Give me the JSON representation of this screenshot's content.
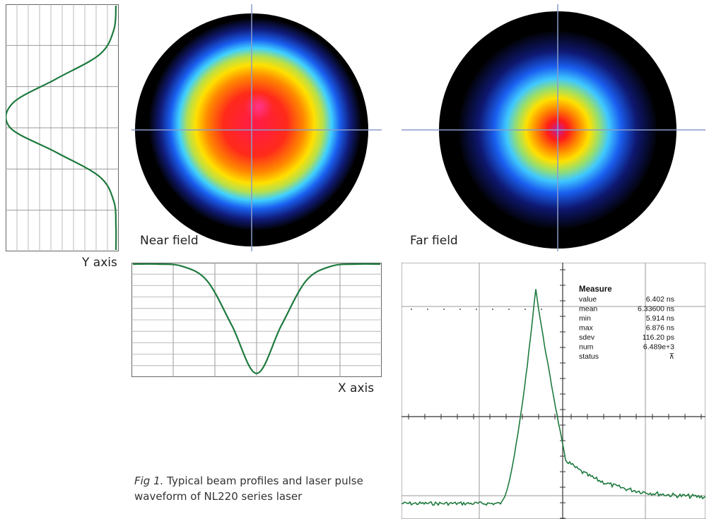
{
  "caption": {
    "fig": "Fig 1.",
    "text": " Typical beam profiles and laser pulse waveform of NL220 series laser"
  },
  "near_field": {
    "label": "Near field"
  },
  "far_field": {
    "label": "Far field"
  },
  "y_profile": {
    "label": "Y axis"
  },
  "x_profile": {
    "label": "X axis"
  },
  "measure": {
    "title": "Measure",
    "rows": [
      {
        "name": "value",
        "val": "6.402 ns"
      },
      {
        "name": "mean",
        "val": "6.33600 ns"
      },
      {
        "name": "min",
        "val": "5.914 ns"
      },
      {
        "name": "max",
        "val": "6.876 ns"
      },
      {
        "name": "sdev",
        "val": "116.20 ps"
      },
      {
        "name": "num",
        "val": "6.489e+3"
      },
      {
        "name": "status",
        "val": "⊼"
      }
    ]
  },
  "colors": {
    "trace": "#1e7a3e",
    "crosshair": "#8a9cc8"
  },
  "chart_data": [
    {
      "type": "line",
      "title": "",
      "xlabel": "X axis",
      "description_source": "horizontal beam intensity profile",
      "x": [
        0,
        1,
        2,
        3,
        4,
        5,
        6,
        7,
        8,
        9,
        10
      ],
      "values": [
        1.0,
        1.0,
        0.98,
        0.85,
        0.45,
        0.02,
        0.45,
        0.85,
        0.98,
        1.0,
        1.0
      ]
    },
    {
      "type": "line",
      "title": "",
      "ylabel": "Y axis",
      "x": [
        0,
        1,
        2,
        3,
        4,
        5,
        6,
        7,
        8,
        9,
        10
      ],
      "values": [
        1.0,
        0.98,
        0.85,
        0.45,
        0.05,
        0.03,
        0.45,
        0.85,
        0.98,
        1.0,
        1.0
      ]
    },
    {
      "type": "line",
      "title": "",
      "x": [
        0,
        1,
        2,
        3,
        4,
        5,
        6,
        7,
        8,
        9,
        10
      ],
      "values": [
        0.05,
        0.05,
        0.05,
        0.1,
        0.95,
        0.25,
        0.13,
        0.1,
        0.08,
        0.07,
        0.06
      ]
    }
  ]
}
